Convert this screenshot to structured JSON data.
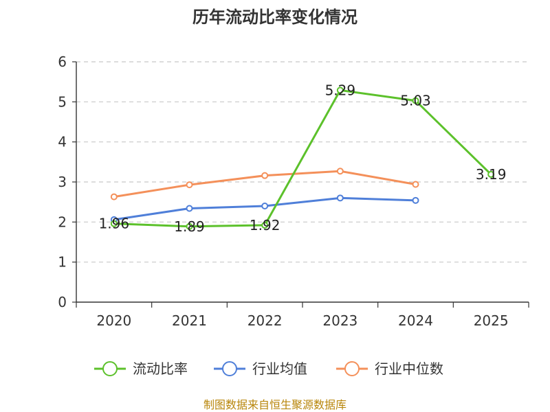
{
  "chart_data": {
    "type": "line",
    "title": "历年流动比率变化情况",
    "categories": [
      "2020",
      "2021",
      "2022",
      "2023",
      "2024",
      "2025"
    ],
    "ylim": [
      0,
      6
    ],
    "yticks": [
      "0",
      "1",
      "2",
      "3",
      "4",
      "5",
      "6"
    ],
    "grid": true,
    "legend_position": "bottom",
    "series": [
      {
        "name": "流动比率",
        "color": "#5cc12b",
        "values": [
          1.96,
          1.89,
          1.92,
          5.29,
          5.03,
          3.19
        ],
        "labels": [
          "1.96",
          "1.89",
          "1.92",
          "5.29",
          "5.03",
          "3.19"
        ]
      },
      {
        "name": "行业均值",
        "color": "#4f7fd9",
        "values": [
          2.06,
          2.34,
          2.4,
          2.6,
          2.54,
          null
        ]
      },
      {
        "name": "行业中位数",
        "color": "#f4905a",
        "values": [
          2.63,
          2.93,
          3.16,
          3.27,
          2.94,
          null
        ]
      }
    ],
    "source": "制图数据来自恒生聚源数据库"
  }
}
